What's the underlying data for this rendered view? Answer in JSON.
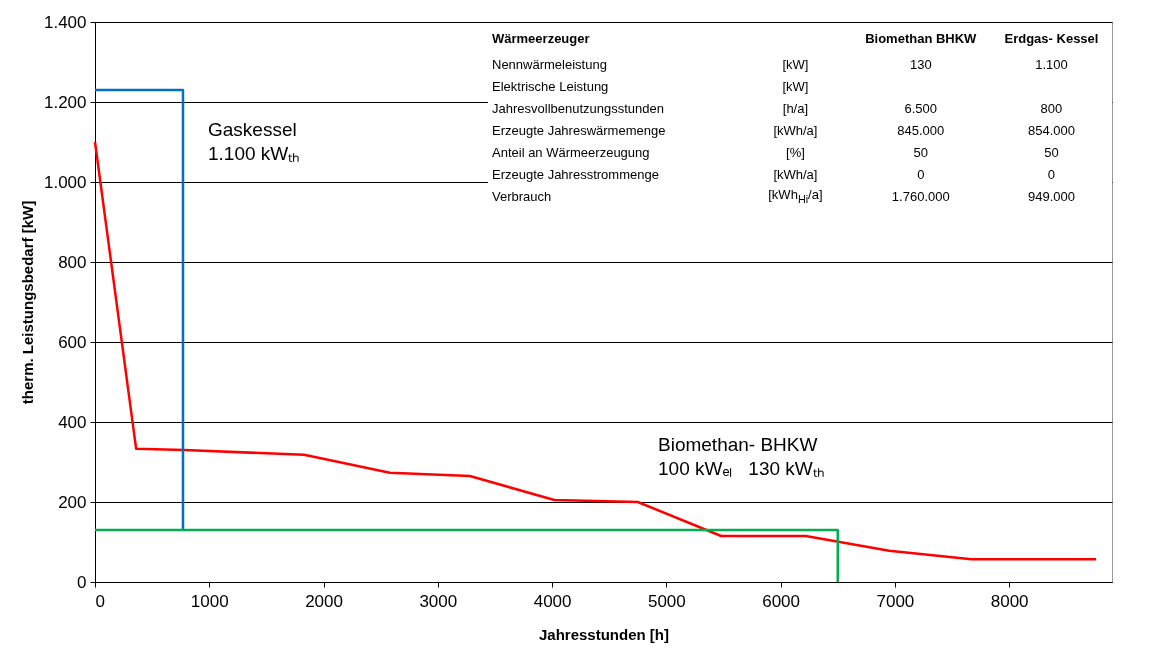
{
  "chart_data": [
    {
      "type": "line",
      "xlabel": "Jahresstunden [h]",
      "ylabel": "therm. Leistungsbedarf [kW]",
      "xlim": [
        0,
        8900
      ],
      "xticks": [
        0,
        1000,
        2000,
        3000,
        4000,
        5000,
        6000,
        7000,
        8000
      ],
      "ylim": [
        0,
        1400
      ],
      "yticks": [
        0,
        200,
        400,
        600,
        800,
        {
          "value": 1000,
          "label": "1.000"
        },
        {
          "value": 1200,
          "label": "1.200"
        },
        {
          "value": 1400,
          "label": "1.400"
        }
      ],
      "grid": "y",
      "series": [
        {
          "color": "#ff0000",
          "x": [
            0,
            360,
            780,
            1830,
            2580,
            3280,
            4020,
            4750,
            5480,
            6220,
            6950,
            7670,
            8760
          ],
          "values": [
            1100,
            333,
            330,
            318,
            273,
            265,
            205,
            200,
            115,
            115,
            78,
            57,
            57
          ]
        },
        {
          "color": "#0070c0",
          "x": [
            0,
            770,
            770
          ],
          "values": [
            1230,
            1230,
            130
          ]
        },
        {
          "color": "#00b050",
          "x": [
            0,
            6500,
            6500
          ],
          "values": [
            130,
            130,
            0
          ]
        }
      ],
      "annotations": [
        "Gaskessel\n1.100 kWₜₕ",
        "Biomethan- BHKW\n100 kWₑₗ   130 kWₜₕ"
      ]
    },
    {
      "type": "other",
      "categories": [
        "Wärmeerzeuger",
        null,
        "Biomethan BHKW",
        "Erdgas- Kessel"
      ],
      "y_categories": [
        "Nennwärmeleistung",
        "Elektrische Leistung",
        "Jahresvollbenutzungsstunden",
        "Erzeugte Jahreswärmemenge",
        "Anteil an Wärmeerzeugung",
        "Erzeugte Jahresstrommenge",
        "Verbrauch"
      ],
      "cell_labels": [
        [
          "[kW]",
          "130",
          "1.100"
        ],
        [
          "[kW]",
          null,
          null
        ],
        [
          "[h/a]",
          "6.500",
          "800"
        ],
        [
          "[kWh/a]",
          "845.000",
          "854.000"
        ],
        [
          "[%]",
          "50",
          "50"
        ],
        [
          "[kWh/a]",
          "0",
          "0"
        ],
        [
          "[kWh$_{Hi}$/a]",
          "1.760.000",
          "949.000"
        ]
      ]
    }
  ]
}
